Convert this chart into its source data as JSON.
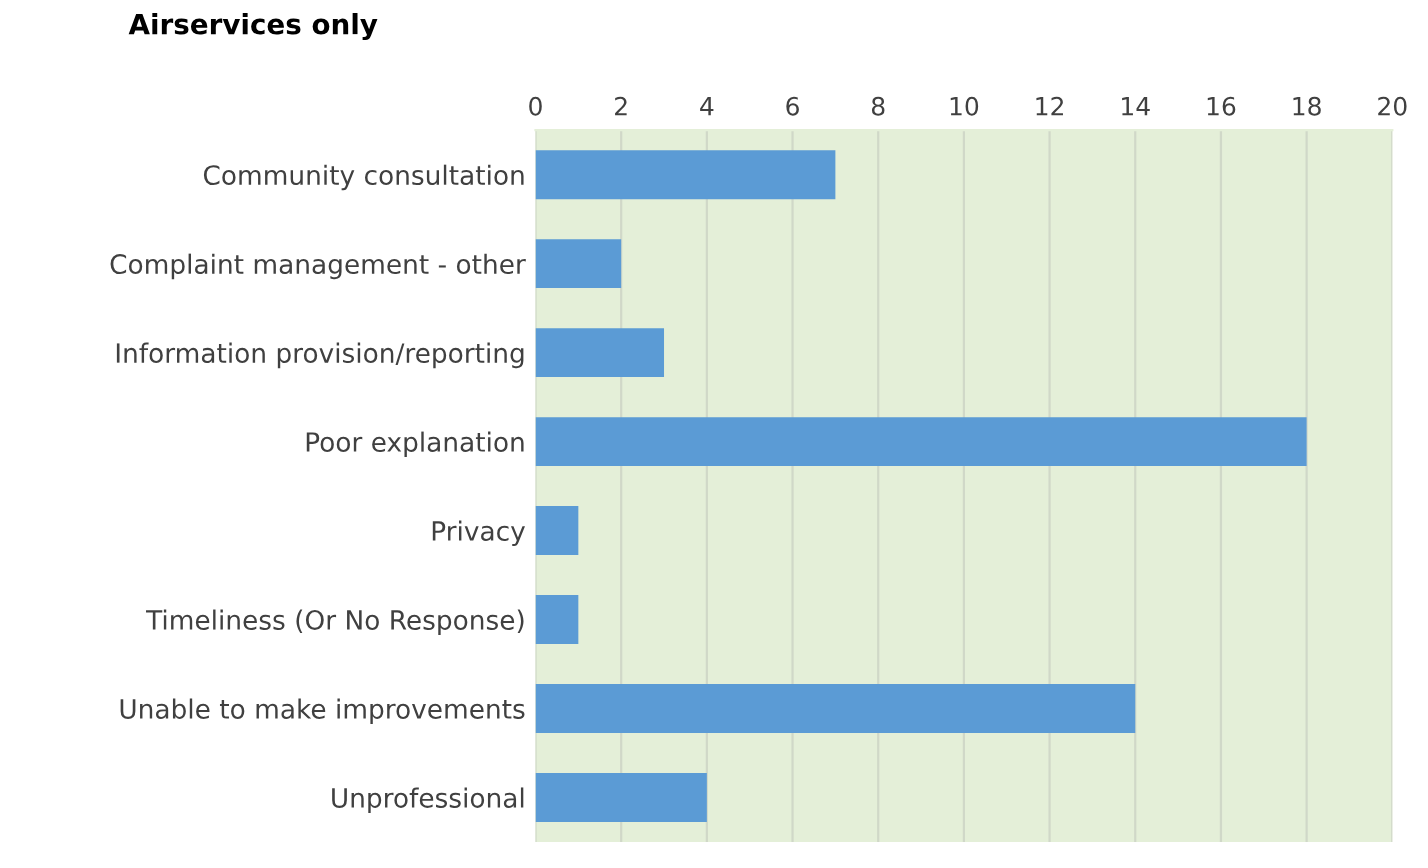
{
  "chart_data": {
    "type": "bar",
    "orientation": "horizontal",
    "title": "Airservices only",
    "categories": [
      "Community consultation",
      "Complaint management - other",
      "Information provision/reporting",
      "Poor explanation",
      "Privacy",
      "Timeliness (Or No Response)",
      "Unable to make improvements",
      "Unprofessional"
    ],
    "values": [
      7,
      2,
      3,
      18,
      1,
      1,
      14,
      4
    ],
    "color": "#5b9bd5",
    "xlim": [
      0,
      20
    ],
    "xticks": [
      0,
      2,
      4,
      6,
      8,
      10,
      12,
      14,
      16,
      18,
      20
    ],
    "grid": "x"
  }
}
